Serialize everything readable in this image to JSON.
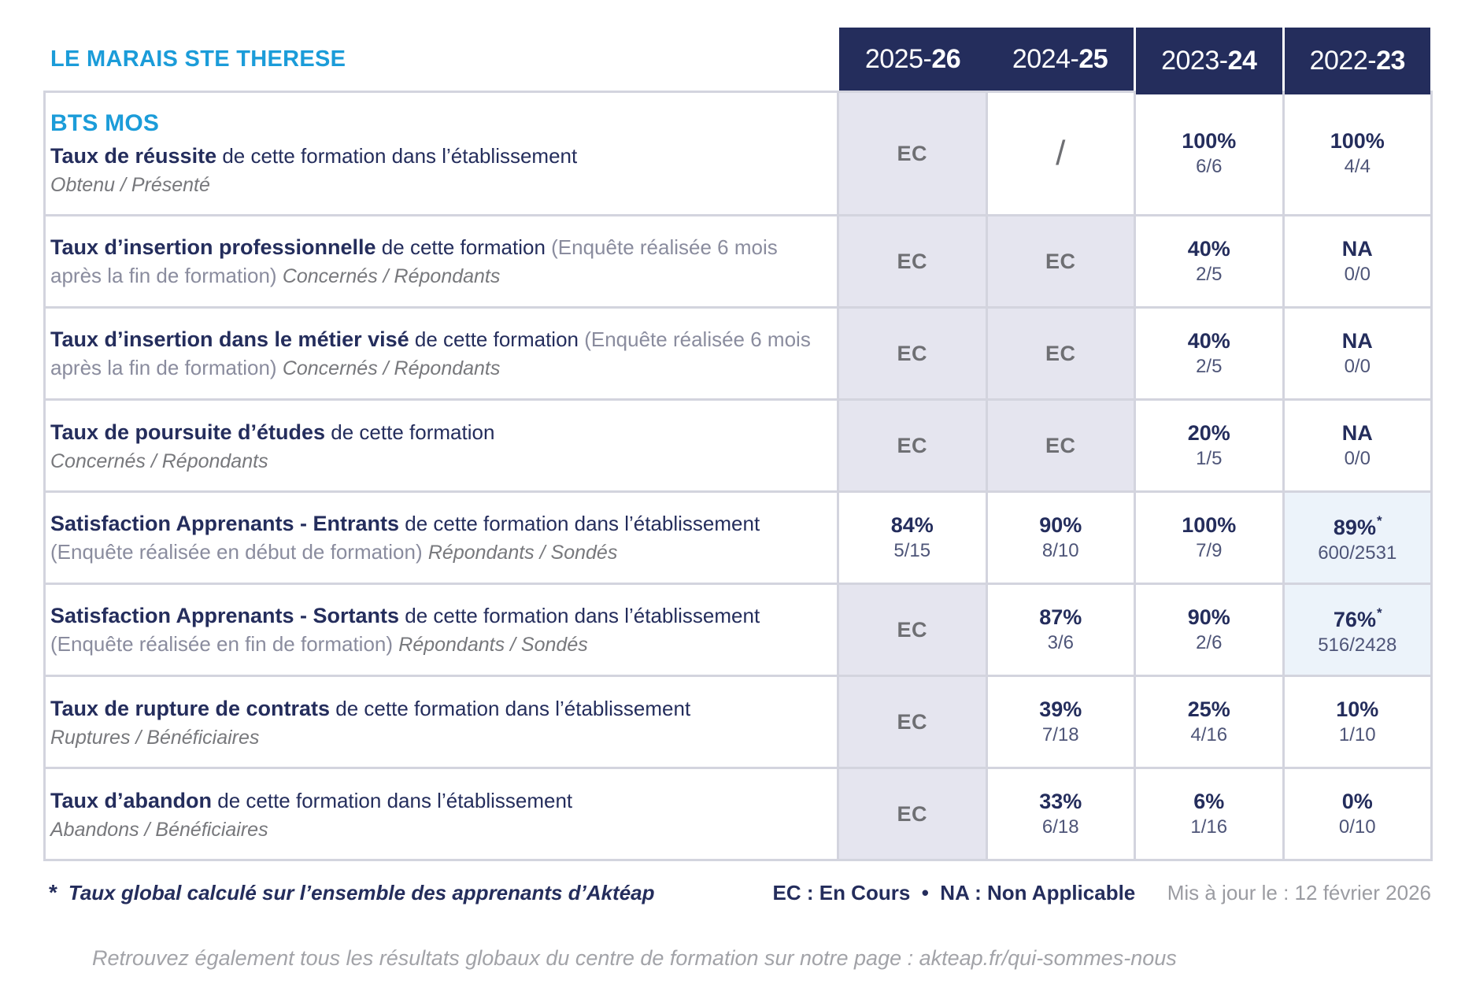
{
  "site": {
    "title": "LE MARAIS STE THERESE",
    "program": "BTS MOS"
  },
  "years": [
    {
      "prefix": "2025-",
      "suffix": "26"
    },
    {
      "prefix": "2024-",
      "suffix": "25"
    },
    {
      "prefix": "2023-",
      "suffix": "24"
    },
    {
      "prefix": "2022-",
      "suffix": "23"
    }
  ],
  "rows": [
    {
      "title": "Taux de réussite",
      "desc": " de cette formation dans l’établissement",
      "paren": "",
      "inline_sub": "",
      "sub": "Obtenu / Présenté",
      "cells": [
        {
          "text": "EC"
        },
        {
          "text": "/"
        },
        {
          "pct": "100%",
          "frac": "6/6"
        },
        {
          "pct": "100%",
          "frac": "4/4"
        }
      ]
    },
    {
      "title": "Taux d’insertion professionnelle",
      "desc": " de cette formation ",
      "paren": "(Enquête réalisée 6 mois après la fin de formation) ",
      "inline_sub": "Concernés / Répondants",
      "sub": "",
      "cells": [
        {
          "text": "EC"
        },
        {
          "text": "EC"
        },
        {
          "pct": "40%",
          "frac": "2/5"
        },
        {
          "pct": "NA",
          "frac": "0/0"
        }
      ]
    },
    {
      "title": "Taux d’insertion dans le métier visé",
      "desc": " de cette formation ",
      "paren": "(Enquête réalisée 6 mois après la fin de formation) ",
      "inline_sub": "Concernés / Répondants",
      "sub": "",
      "cells": [
        {
          "text": "EC"
        },
        {
          "text": "EC"
        },
        {
          "pct": "40%",
          "frac": "2/5"
        },
        {
          "pct": "NA",
          "frac": "0/0"
        }
      ]
    },
    {
      "title": "Taux de poursuite d’études",
      "desc": " de cette formation",
      "paren": "",
      "inline_sub": "",
      "sub": "Concernés / Répondants",
      "cells": [
        {
          "text": "EC"
        },
        {
          "text": "EC"
        },
        {
          "pct": "20%",
          "frac": "1/5"
        },
        {
          "pct": "NA",
          "frac": "0/0"
        }
      ]
    },
    {
      "title": "Satisfaction Apprenants - Entrants",
      "desc": " de cette formation dans l’établissement ",
      "paren": "(Enquête réalisée en début de formation) ",
      "inline_sub": "Répondants / Sondés",
      "sub": "",
      "cells": [
        {
          "pct": "84%",
          "frac": "5/15"
        },
        {
          "pct": "90%",
          "frac": "8/10"
        },
        {
          "pct": "100%",
          "frac": "7/9"
        },
        {
          "pct": "89%",
          "star": "*",
          "frac": "600/2531"
        }
      ]
    },
    {
      "title": "Satisfaction Apprenants - Sortants",
      "desc": " de cette formation dans l’établissement ",
      "paren": "(Enquête réalisée en fin de formation) ",
      "inline_sub": "Répondants / Sondés",
      "sub": "",
      "cells": [
        {
          "text": "EC"
        },
        {
          "pct": "87%",
          "frac": "3/6"
        },
        {
          "pct": "90%",
          "frac": "2/6"
        },
        {
          "pct": "76%",
          "star": "*",
          "frac": "516/2428"
        }
      ]
    },
    {
      "title": "Taux de rupture de contrats",
      "desc": " de cette formation dans l’établissement",
      "paren": "",
      "inline_sub": "",
      "sub": "Ruptures / Bénéficiaires",
      "cells": [
        {
          "text": "EC"
        },
        {
          "pct": "39%",
          "frac": "7/18"
        },
        {
          "pct": "25%",
          "frac": "4/16"
        },
        {
          "pct": "10%",
          "frac": "1/10"
        }
      ]
    },
    {
      "title": "Taux d’abandon",
      "desc": " de cette formation dans l’établissement",
      "paren": "",
      "inline_sub": "",
      "sub": "Abandons / Bénéficiaires",
      "cells": [
        {
          "text": "EC"
        },
        {
          "pct": "33%",
          "frac": "6/18"
        },
        {
          "pct": "6%",
          "frac": "1/16"
        },
        {
          "pct": "0%",
          "frac": "0/10"
        }
      ]
    }
  ],
  "footnote": {
    "star": "*",
    "text": "Taux global calculé sur l’ensemble des apprenants d’Aktéap",
    "legend": "EC : En Cours  •  NA : Non Applicable",
    "updated": "Mis à jour le : 12 février 2026"
  },
  "footer_line": "Retrouvez également tous les résultats globaux du centre de formation sur notre page : akteap.fr/qui-sommes-nous",
  "colors": {
    "accent_blue": "#1b9cd9",
    "navy": "#242d5c",
    "ec_cell_bg": "#e5e5ef",
    "highlight_cell_bg": "#ecf3fa",
    "grid_line": "#d3d4de"
  }
}
